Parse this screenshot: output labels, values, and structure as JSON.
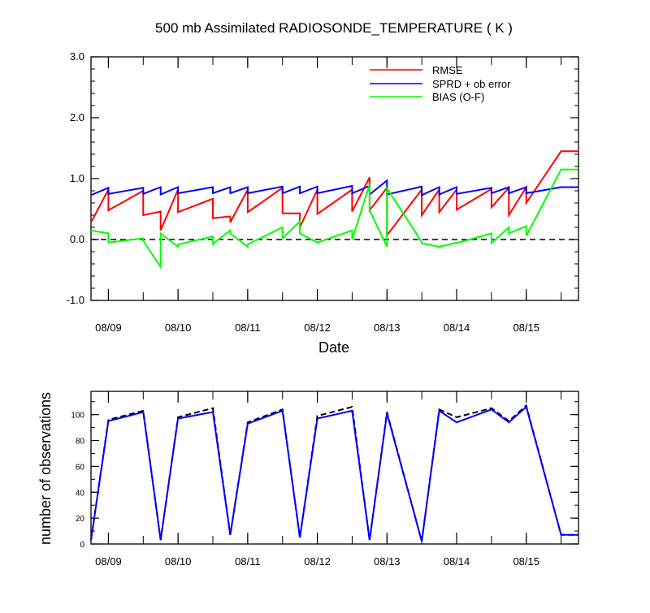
{
  "chart_data": [
    {
      "type": "line",
      "title": "500 mb Assimilated RADIOSONDE_TEMPERATURE ( K )",
      "xlabel": "Date",
      "ylabel": "",
      "xlim": [
        0,
        7
      ],
      "ylim": [
        -1.0,
        3.0
      ],
      "y_ticks": [
        -1.0,
        0.0,
        1.0,
        2.0,
        3.0
      ],
      "y_tick_labels": [
        "-1.0",
        "0.0",
        "1.0",
        "2.0",
        "3.0"
      ],
      "x_ticks": [
        0.25,
        1.25,
        2.25,
        3.25,
        4.25,
        5.25,
        6.25
      ],
      "x_tick_labels": [
        "08/09",
        "08/10",
        "08/11",
        "08/12",
        "08/13",
        "08/14",
        "08/15"
      ],
      "grid": false,
      "legend": "top-right",
      "zero_line": true,
      "series": [
        {
          "name": "RMSE",
          "color": "#ff0000",
          "x": [
            0,
            0.25,
            0.25,
            0.75,
            0.75,
            1,
            1,
            1.25,
            1.25,
            1.75,
            1.75,
            2,
            2,
            2.25,
            2.25,
            2.75,
            2.75,
            3,
            3,
            3.25,
            3.25,
            3.75,
            3.75,
            4,
            4,
            4.25,
            4.25,
            4.75,
            4.75,
            5,
            5,
            5.25,
            5.25,
            5.75,
            5.75,
            6,
            6,
            6.25,
            6.25,
            6.75,
            6.75,
            7
          ],
          "y": [
            0.28,
            0.82,
            0.48,
            0.8,
            0.4,
            0.46,
            0.15,
            0.82,
            0.45,
            0.67,
            0.35,
            0.38,
            0.28,
            0.82,
            0.45,
            0.85,
            0.43,
            0.43,
            0.2,
            0.82,
            0.42,
            0.82,
            0.46,
            1.02,
            0.48,
            0.85,
            0.07,
            0.82,
            0.4,
            0.82,
            0.45,
            0.82,
            0.49,
            0.83,
            0.53,
            0.85,
            0.4,
            0.86,
            0.6,
            1.45,
            1.45,
            1.45
          ]
        },
        {
          "name": "SPRD + ob error",
          "color": "#0000ff",
          "x": [
            0,
            0.25,
            0.25,
            0.75,
            0.75,
            1,
            1,
            1.25,
            1.25,
            1.75,
            1.75,
            2,
            2,
            2.25,
            2.25,
            2.75,
            2.75,
            3,
            3,
            3.25,
            3.25,
            3.75,
            3.75,
            4,
            4,
            4.25,
            4.25,
            4.75,
            4.75,
            5,
            5,
            5.25,
            5.25,
            5.75,
            5.75,
            6,
            6,
            6.25,
            6.25,
            6.75,
            6.75,
            7
          ],
          "y": [
            0.73,
            0.85,
            0.75,
            0.85,
            0.75,
            0.86,
            0.74,
            0.86,
            0.76,
            0.86,
            0.76,
            0.86,
            0.76,
            0.86,
            0.76,
            0.87,
            0.76,
            0.87,
            0.76,
            0.87,
            0.76,
            0.88,
            0.76,
            0.88,
            0.74,
            0.97,
            0.74,
            0.87,
            0.73,
            0.86,
            0.74,
            0.86,
            0.75,
            0.85,
            0.76,
            0.86,
            0.76,
            0.86,
            0.76,
            0.86,
            0.86,
            0.86
          ]
        },
        {
          "name": "BIAS (O-F)",
          "color": "#00ff00",
          "x": [
            0,
            0.25,
            0.25,
            0.75,
            0.75,
            1,
            1,
            1.25,
            1.25,
            1.75,
            1.75,
            2,
            2,
            2.25,
            2.25,
            2.75,
            2.75,
            3,
            3,
            3.25,
            3.25,
            3.75,
            3.75,
            4,
            4,
            4.25,
            4.25,
            4.75,
            4.75,
            5,
            5,
            5.25,
            5.25,
            5.75,
            5.75,
            6,
            6,
            6.25,
            6.25,
            6.75,
            6.75,
            7
          ],
          "y": [
            0.15,
            0.1,
            -0.05,
            0.02,
            -0.02,
            -0.45,
            0.1,
            -0.12,
            -0.08,
            0.05,
            -0.07,
            0.15,
            0.1,
            -0.12,
            -0.08,
            0.2,
            0.02,
            0.3,
            0.1,
            -0.05,
            -0.05,
            0.15,
            0.0,
            0.9,
            0.48,
            -0.12,
            0.84,
            -0.04,
            -0.06,
            -0.12,
            -0.12,
            -0.05,
            -0.06,
            0.1,
            -0.06,
            0.2,
            0.1,
            0.22,
            0.06,
            1.15,
            1.15,
            1.15
          ]
        }
      ]
    },
    {
      "type": "line",
      "title": "",
      "xlabel": "",
      "ylabel": "number of observations",
      "xlim": [
        0,
        7
      ],
      "ylim": [
        0,
        118
      ],
      "y_ticks": [
        0,
        20,
        40,
        60,
        80,
        100
      ],
      "y_tick_labels": [
        "0",
        "20",
        "40",
        "60",
        "80",
        "100"
      ],
      "x_ticks": [
        0.25,
        1.25,
        2.25,
        3.25,
        4.25,
        5.25,
        6.25
      ],
      "x_tick_labels": [
        "08/09",
        "08/10",
        "08/11",
        "08/12",
        "08/13",
        "08/14",
        "08/15"
      ],
      "grid": false,
      "series": [
        {
          "color": "#000000",
          "dash": true,
          "x": [
            0,
            0.25,
            0.75,
            1,
            1.25,
            1.75,
            2,
            2.25,
            2.75,
            3,
            3.25,
            3.75,
            4,
            4.25,
            4.75,
            5,
            5.25,
            5.75,
            6,
            6.25,
            6.75,
            7
          ],
          "y": [
            3,
            96,
            103,
            3,
            98,
            105,
            7,
            94,
            104,
            5,
            99,
            106,
            3,
            102,
            2,
            104,
            98,
            105,
            95,
            107,
            7,
            7
          ]
        },
        {
          "color": "#0000ff",
          "dash": false,
          "x": [
            0,
            0.25,
            0.75,
            1,
            1.25,
            1.75,
            2,
            2.25,
            2.75,
            3,
            3.25,
            3.75,
            4,
            4.25,
            4.75,
            5,
            5.25,
            5.75,
            6,
            6.25,
            6.75,
            7
          ],
          "y": [
            3,
            95,
            102,
            3,
            97,
            102,
            7,
            93,
            103,
            5,
            97,
            103,
            3,
            101,
            2,
            103,
            94,
            104,
            94,
            106,
            7,
            7
          ]
        }
      ]
    }
  ]
}
